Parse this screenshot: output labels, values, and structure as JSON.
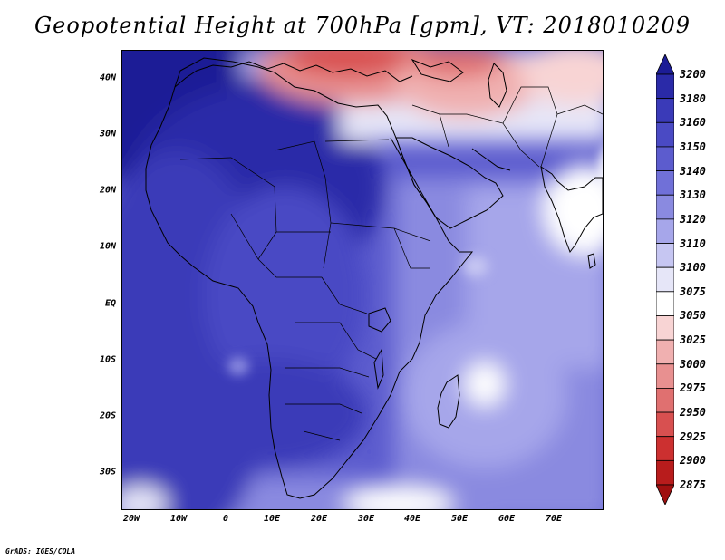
{
  "title": "Geopotential Height at 700hPa [gpm], VT: 2018010209",
  "credit": "GrADS: IGES/COLA",
  "map": {
    "projection": "lat-lon",
    "lon_range": [
      -23,
      80
    ],
    "lat_range": [
      -37,
      45
    ],
    "lat_ticks": [
      {
        "value": 40,
        "label": "40N"
      },
      {
        "value": 30,
        "label": "30N"
      },
      {
        "value": 20,
        "label": "20N"
      },
      {
        "value": 10,
        "label": "10N"
      },
      {
        "value": 0,
        "label": "EQ"
      },
      {
        "value": -10,
        "label": "10S"
      },
      {
        "value": -20,
        "label": "20S"
      },
      {
        "value": -30,
        "label": "30S"
      }
    ],
    "lon_ticks": [
      {
        "value": -20,
        "label": "20W"
      },
      {
        "value": -10,
        "label": "10W"
      },
      {
        "value": 0,
        "label": "0"
      },
      {
        "value": 10,
        "label": "10E"
      },
      {
        "value": 20,
        "label": "20E"
      },
      {
        "value": 30,
        "label": "30E"
      },
      {
        "value": 40,
        "label": "40E"
      },
      {
        "value": 50,
        "label": "50E"
      },
      {
        "value": 60,
        "label": "60E"
      },
      {
        "value": 70,
        "label": "70E"
      }
    ]
  },
  "colorbar": {
    "levels": [
      "3200",
      "3180",
      "3160",
      "3150",
      "3140",
      "3130",
      "3120",
      "3110",
      "3100",
      "3075",
      "3050",
      "3025",
      "3000",
      "2975",
      "2950",
      "2925",
      "2900",
      "2875"
    ],
    "colors": [
      "#1c1c96",
      "#2a2aa8",
      "#3a3ab8",
      "#4a4ac4",
      "#5c5cce",
      "#7070d8",
      "#8a8ae0",
      "#a6a6ea",
      "#c6c6f2",
      "#e6e6f8",
      "#ffffff",
      "#f8d4d4",
      "#f0b0b0",
      "#e89090",
      "#e07070",
      "#d85050",
      "#cc3030",
      "#b81c1c",
      "#a01010"
    ]
  }
}
